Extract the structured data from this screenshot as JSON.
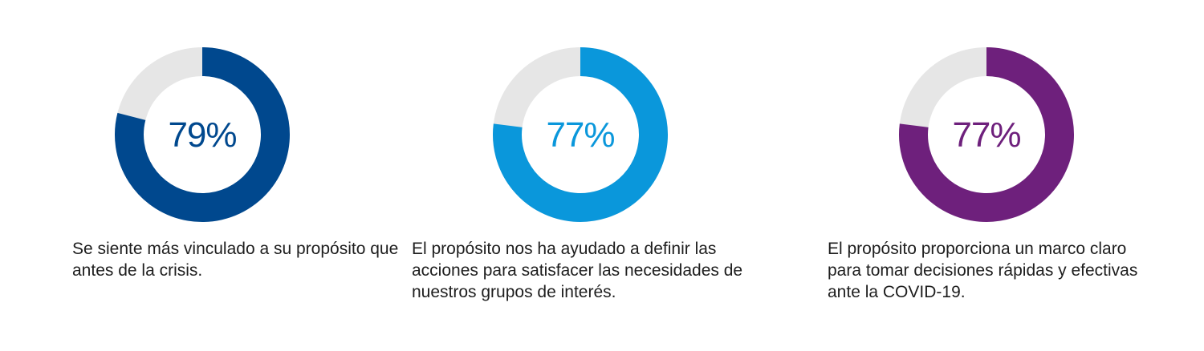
{
  "chart_data": [
    {
      "type": "pie",
      "value": 79,
      "value_label": "79%",
      "caption": "Se siente más vinculado a su propósito que antes de la crisis.",
      "color": "#00488e",
      "remainder_color": "#e6e6e6"
    },
    {
      "type": "pie",
      "value": 77,
      "value_label": "77%",
      "caption": "El propósito nos ha ayudado a definir las acciones para satisfacer las necesidades de nuestros grupos de interés.",
      "color": "#0a97db",
      "remainder_color": "#e6e6e6"
    },
    {
      "type": "pie",
      "value": 77,
      "value_label": "77%",
      "caption": "El propósito proporciona un marco claro para tomar decisiones rápidas y efectivas ante la COVID-19.",
      "color": "#6e207c",
      "remainder_color": "#e6e6e6"
    }
  ]
}
